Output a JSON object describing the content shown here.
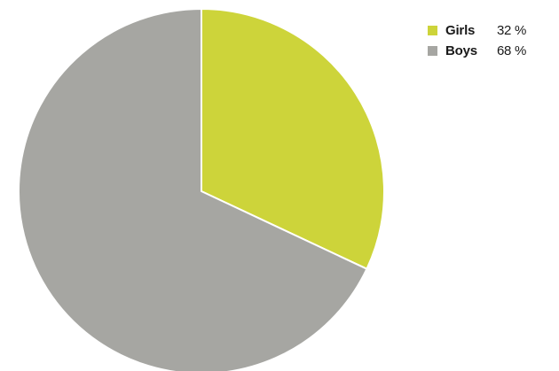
{
  "chart_data": {
    "type": "pie",
    "title": "",
    "legend_position": "top-right",
    "slices": [
      {
        "label": "Girls",
        "value": 32,
        "value_text": "32 %",
        "color": "#cdd43a"
      },
      {
        "label": "Boys",
        "value": 68,
        "value_text": "68 %",
        "color": "#a6a6a2"
      }
    ]
  }
}
